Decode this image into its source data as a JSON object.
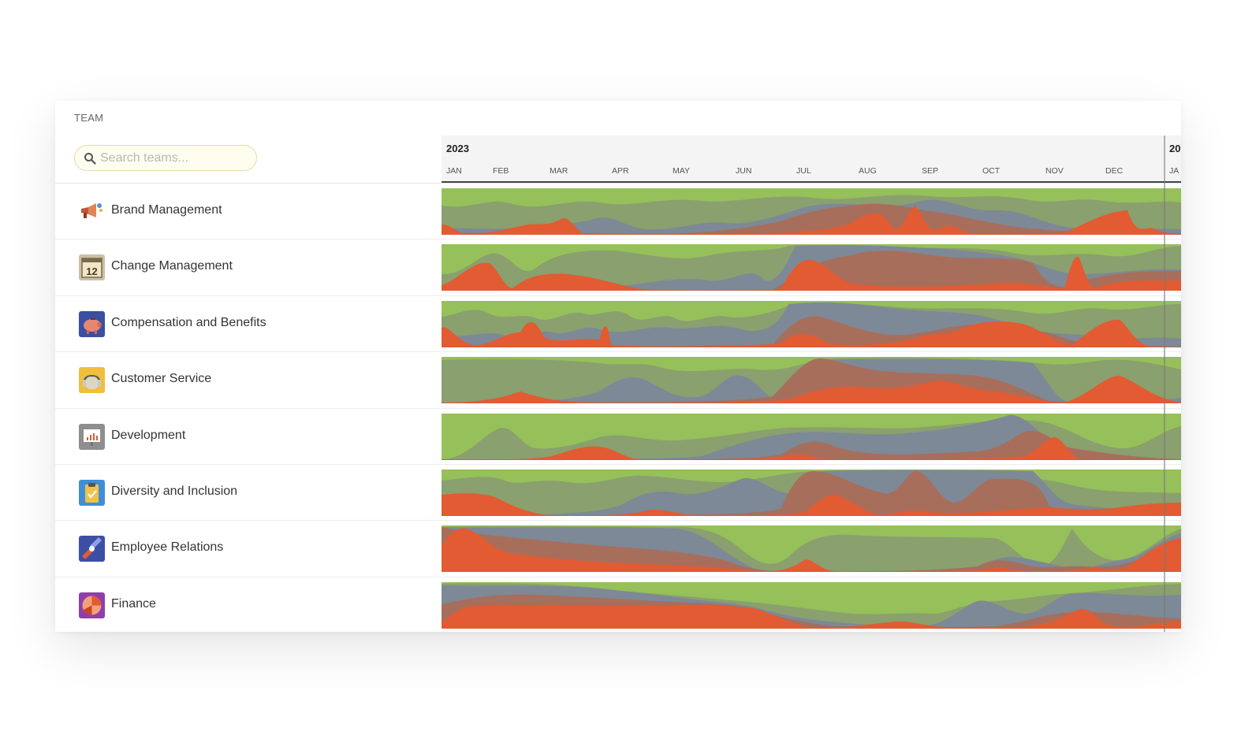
{
  "header": {
    "team_label": "TEAM"
  },
  "search": {
    "placeholder": "Search teams..."
  },
  "timeline": {
    "year": "2023",
    "next_year": "20",
    "months": [
      "JAN",
      "FEB",
      "MAR",
      "APR",
      "MAY",
      "JUN",
      "JUL",
      "AUG",
      "SEP",
      "OCT",
      "NOV",
      "DEC",
      "JA"
    ]
  },
  "colors": {
    "green": "#96c05a",
    "sage": "#8aa06e",
    "slate": "#7d8996",
    "brown": "#a86e5c",
    "orange": "#e25b32"
  },
  "teams": [
    {
      "name": "Brand Management",
      "icon": "megaphone-icon"
    },
    {
      "name": "Change Management",
      "icon": "calendar-icon"
    },
    {
      "name": "Compensation and Benefits",
      "icon": "piggy-bank-icon"
    },
    {
      "name": "Customer Service",
      "icon": "headset-icon"
    },
    {
      "name": "Development",
      "icon": "presentation-chart-icon"
    },
    {
      "name": "Diversity and Inclusion",
      "icon": "clipboard-icon"
    },
    {
      "name": "Employee Relations",
      "icon": "handshake-icon"
    },
    {
      "name": "Finance",
      "icon": "pie-chart-icon"
    }
  ]
}
